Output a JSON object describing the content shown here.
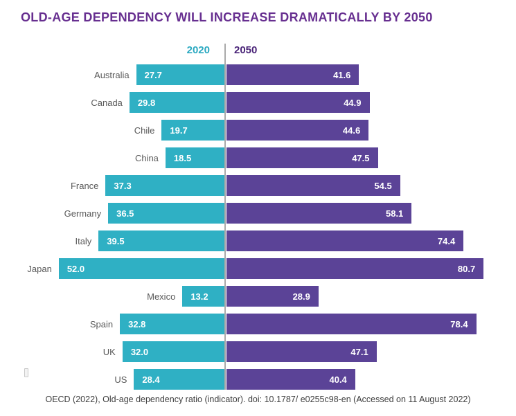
{
  "title": "OLD-AGE DEPENDENCY WILL INCREASE DRAMATICALLY BY 2050",
  "legend": {
    "year_2020": "2020",
    "year_2050": "2050"
  },
  "source_note": "OECD (2022), Old-age dependency ratio (indicator). doi: 10.1787/ e0255c98-en (Accessed on 11 August 2022)",
  "colors": {
    "bar_2020": "#2FB0C4",
    "bar_2050": "#5B4397",
    "title_text": "#672F90",
    "legend_2020_text": "#2BA9C1",
    "legend_2050_text": "#4A2478",
    "divider_line": "#A9A9A9",
    "country_label_text": "#595959",
    "bar_value_text": "#FFFFFF"
  },
  "chart_data": {
    "type": "bar",
    "variant": "diverging-horizontal",
    "title": "OLD-AGE DEPENDENCY WILL INCREASE DRAMATICALLY BY 2050",
    "categories": [
      "Australia",
      "Canada",
      "Chile",
      "China",
      "France",
      "Germany",
      "Italy",
      "Japan",
      "Mexico",
      "Spain",
      "UK",
      "US"
    ],
    "series": [
      {
        "name": "2020",
        "values": [
          27.7,
          29.8,
          19.7,
          18.5,
          37.3,
          36.5,
          39.5,
          52.0,
          13.2,
          32.8,
          32.0,
          28.4
        ]
      },
      {
        "name": "2050",
        "values": [
          41.6,
          44.9,
          44.6,
          47.5,
          54.5,
          58.1,
          74.4,
          80.7,
          28.9,
          78.4,
          47.1,
          40.4
        ]
      }
    ],
    "value_axis_range": [
      0,
      85
    ],
    "grid": false,
    "axis_ticks_shown": false,
    "data_labels": true,
    "data_label_decimals": 1,
    "legend_position": "top-center",
    "source": "OECD (2022), Old-age dependency ratio (indicator). doi: 10.1787/ e0255c98-en (Accessed on 11 August 2022)"
  }
}
